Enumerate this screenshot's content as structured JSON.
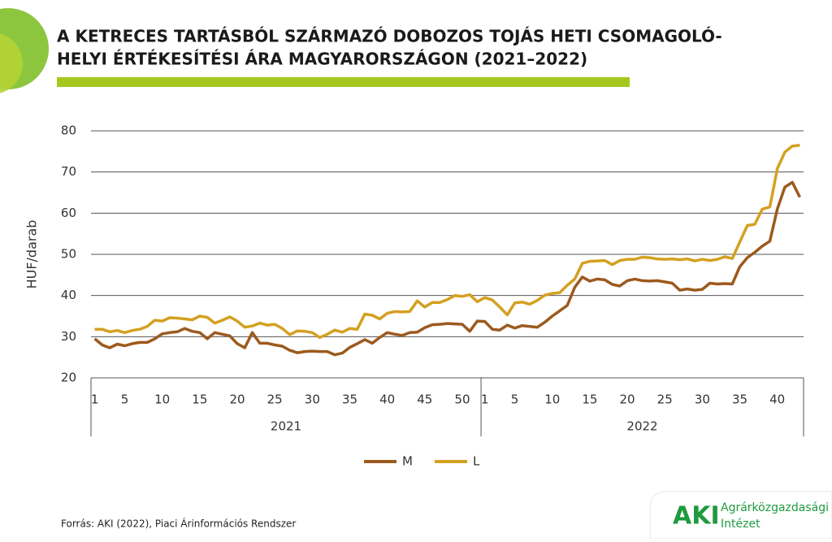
{
  "chart_data": {
    "type": "line",
    "title_lines": [
      "A KETRECES TARTÁSBÓL SZÁRMAZÓ DOBOZOS TOJÁS HETI CSOMAGOLÓ-",
      "HELYI ÉRTÉKESÍTÉSI ÁRA MAGYARORSZÁGON (2021–2022)"
    ],
    "y_label": "HUF/darab",
    "categories": [
      "1",
      null,
      null,
      null,
      "5",
      null,
      null,
      null,
      null,
      "10",
      null,
      null,
      null,
      null,
      "15",
      null,
      null,
      null,
      null,
      "20",
      null,
      null,
      null,
      null,
      "25",
      null,
      null,
      null,
      null,
      "30",
      null,
      null,
      null,
      null,
      "35",
      null,
      null,
      null,
      null,
      "40",
      null,
      null,
      null,
      null,
      "45",
      null,
      null,
      null,
      null,
      "50",
      null,
      null,
      "1",
      null,
      null,
      null,
      "5",
      null,
      null,
      null,
      null,
      "10",
      null,
      null,
      null,
      null,
      "15",
      null,
      null,
      null,
      null,
      "20",
      null,
      null,
      null,
      null,
      "25",
      null,
      null,
      null,
      null,
      "30",
      null,
      null,
      null,
      null,
      "35",
      null,
      null,
      null,
      null,
      "40",
      null,
      null,
      null
    ],
    "groups": [
      "2021",
      "2022"
    ],
    "series": [
      {
        "name": "M",
        "color": "#9c5a1e",
        "values": [
          29.5,
          28,
          27.3,
          28.2,
          27.8,
          28.3,
          28.6,
          28.6,
          29.5,
          30.7,
          31,
          31.2,
          32,
          31.3,
          31,
          29.5,
          31,
          30.6,
          30.2,
          28.3,
          27.3,
          31,
          28.4,
          28.4,
          28,
          27.7,
          26.7,
          26.1,
          26.4,
          26.5,
          26.4,
          26.4,
          25.6,
          26,
          27.4,
          28.3,
          29.3,
          28.4,
          29.8,
          31,
          30.6,
          30.3,
          31,
          31.1,
          32.2,
          32.9,
          33,
          33.2,
          33.1,
          33,
          31.3,
          33.8,
          33.7,
          31.8,
          31.6,
          32.8,
          32.1,
          32.7,
          32.5,
          32.3,
          33.5,
          35,
          36.3,
          37.6,
          42,
          44.5,
          43.5,
          44,
          43.8,
          42.7,
          42.3,
          43.6,
          44,
          43.6,
          43.5,
          43.6,
          43.3,
          43,
          41.3,
          41.6,
          41.3,
          41.5,
          43,
          42.8,
          42.9,
          42.8,
          47,
          49.2,
          50.5,
          52,
          53.2,
          61,
          66.3,
          67.5,
          63.9
        ]
      },
      {
        "name": "L",
        "color": "#d4a020",
        "values": [
          31.8,
          31.8,
          31.2,
          31.5,
          31,
          31.5,
          31.8,
          32.5,
          34,
          33.8,
          34.6,
          34.5,
          34.3,
          34.1,
          35,
          34.7,
          33.3,
          34,
          34.8,
          33.8,
          32.3,
          32.6,
          33.3,
          32.8,
          33,
          32,
          30.5,
          31.4,
          31.3,
          31,
          29.8,
          30.6,
          31.6,
          31.1,
          32,
          31.8,
          35.5,
          35.2,
          34.3,
          35.7,
          36.1,
          36,
          36.1,
          38.7,
          37.2,
          38.3,
          38.3,
          39,
          40,
          39.8,
          40.2,
          38.5,
          39.5,
          38.9,
          37.2,
          35.3,
          38.2,
          38.4,
          37.9,
          38.8,
          40.1,
          40.5,
          40.7,
          42.5,
          44,
          47.8,
          48.3,
          48.4,
          48.5,
          47.5,
          48.5,
          48.8,
          48.8,
          49.3,
          49.2,
          48.9,
          48.8,
          48.9,
          48.7,
          48.9,
          48.4,
          48.8,
          48.5,
          48.8,
          49.4,
          49,
          53,
          57,
          57.3,
          61,
          61.5,
          70.8,
          74.8,
          76.3,
          76.5
        ]
      }
    ],
    "ylim": [
      20,
      80
    ],
    "yticks": [
      20,
      30,
      40,
      50,
      60,
      70,
      80
    ],
    "grid": true,
    "legend": "bottom"
  },
  "source": "Forrás: AKI (2022), Piaci Árinformációs Rendszer",
  "logo": {
    "mark": "AKI",
    "line1": "Agrárközgazdasági",
    "line2": "Intézet"
  }
}
